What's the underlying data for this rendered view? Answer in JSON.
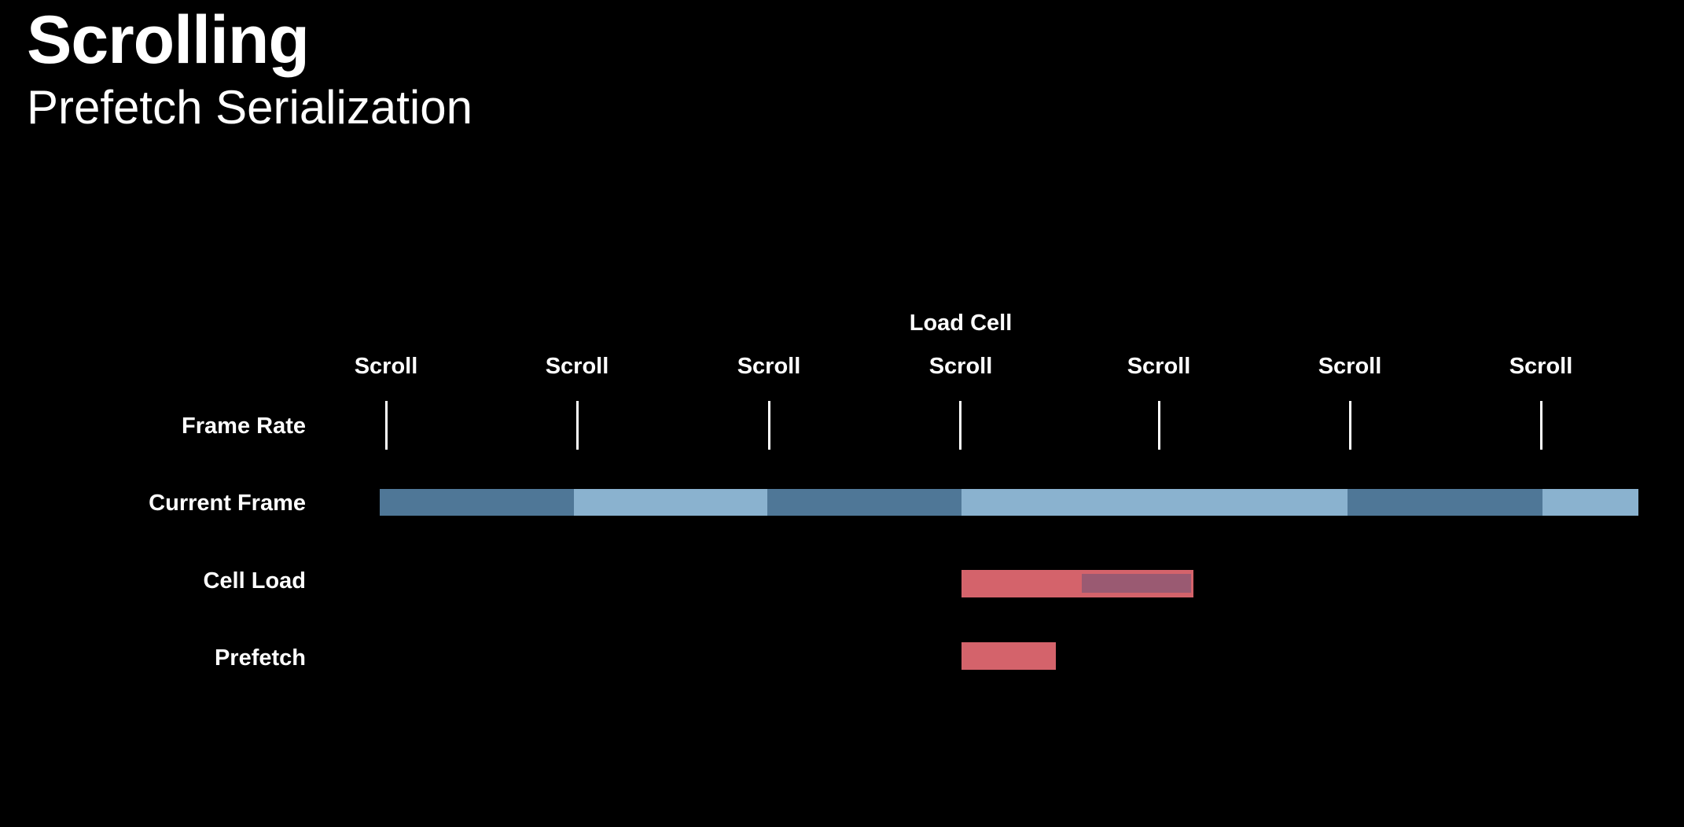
{
  "header": {
    "title": "Scrolling",
    "subtitle": "Prefetch Serialization"
  },
  "rows": {
    "frame_rate": "Frame Rate",
    "current_frame": "Current Frame",
    "cell_load": "Cell Load",
    "prefetch": "Prefetch"
  },
  "markers": {
    "load_cell": "Load Cell",
    "scroll": [
      "Scroll",
      "Scroll",
      "Scroll",
      "Scroll",
      "Scroll",
      "Scroll",
      "Scroll"
    ]
  },
  "colors": {
    "background": "#000000",
    "frame_dark": "#4f7797",
    "frame_light": "#8ab2cf",
    "cell_load": "#d4636b",
    "cell_load_overlap": "#9a5a72",
    "prefetch": "#d4636b"
  }
}
